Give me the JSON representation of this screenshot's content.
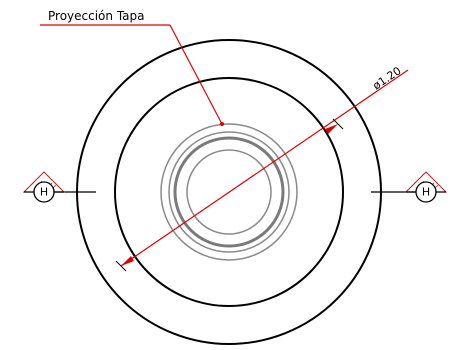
{
  "drawing": {
    "title_label": "Proyección Tapa",
    "dimension_label": "ø1.20",
    "section_marker_left": "H",
    "section_marker_right": "H"
  },
  "colors": {
    "outline": "#000000",
    "inner_rings": "#808080",
    "annotation": "#e00000",
    "hatch": "#d02020"
  }
}
